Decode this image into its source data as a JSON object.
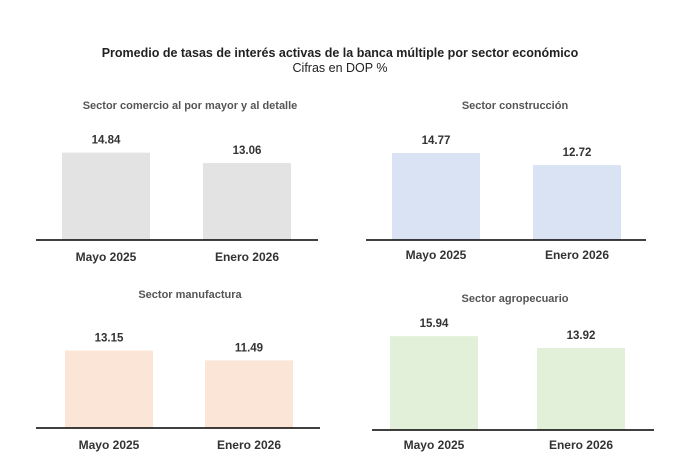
{
  "header": {
    "title": "Promedio de tasas de interés activas de la banca múltiple por sector económico",
    "subtitle": "Cifras en DOP %"
  },
  "chart_data": [
    {
      "type": "bar",
      "title": "Sector comercio al por mayor y al detalle",
      "categories": [
        "Mayo 2025",
        "Enero 2026"
      ],
      "values": [
        14.84,
        13.06
      ],
      "data_labels": [
        "14.84",
        "13.06"
      ],
      "color": "#e3e3e3"
    },
    {
      "type": "bar",
      "title": "Sector construcción",
      "categories": [
        "Mayo 2025",
        "Enero 2026"
      ],
      "values": [
        14.77,
        12.72
      ],
      "data_labels": [
        "14.77",
        "12.72"
      ],
      "color": "#dae3f3"
    },
    {
      "type": "bar",
      "title": "Sector manufactura",
      "categories": [
        "Mayo 2025",
        "Enero 2026"
      ],
      "values": [
        13.15,
        11.49
      ],
      "data_labels": [
        "13.15",
        "11.49"
      ],
      "color": "#fbe5d6"
    },
    {
      "type": "bar",
      "title": "Sector agropecuario",
      "categories": [
        "Mayo 2025",
        "Enero 2026"
      ],
      "values": [
        15.94,
        13.92
      ],
      "data_labels": [
        "15.94",
        "13.92"
      ],
      "color": "#e2f0d9"
    }
  ]
}
